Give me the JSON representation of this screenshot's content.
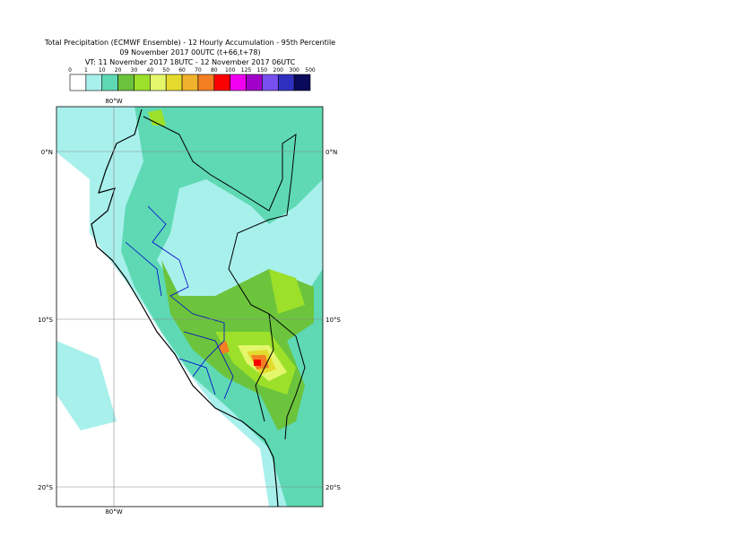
{
  "title_lines": [
    "Total Precipitation (ECMWF Ensemble) - 12 Hourly Accumulation - 95th Percentile",
    "09 November 2017 00UTC (t+66,t+78)",
    "VT: 11 November 2017 18UTC - 12 November 2017 06UTC"
  ],
  "colorbar": {
    "labels": [
      "0",
      "1",
      "10",
      "20",
      "30",
      "40",
      "50",
      "60",
      "70",
      "80",
      "100",
      "125",
      "150",
      "200",
      "300",
      "500"
    ],
    "colors": [
      "#ffffff",
      "#a8f0ec",
      "#5ed9b4",
      "#6bc43c",
      "#9ce02a",
      "#e4f76c",
      "#e4da2e",
      "#f0b22c",
      "#f47f22",
      "#fa0000",
      "#f000f0",
      "#a000c8",
      "#7850f0",
      "#3030c0",
      "#0a0a5a"
    ]
  },
  "map": {
    "lon_labels": [
      "80°W"
    ],
    "lat_labels": [
      "0°N",
      "10°S",
      "20°S"
    ]
  }
}
